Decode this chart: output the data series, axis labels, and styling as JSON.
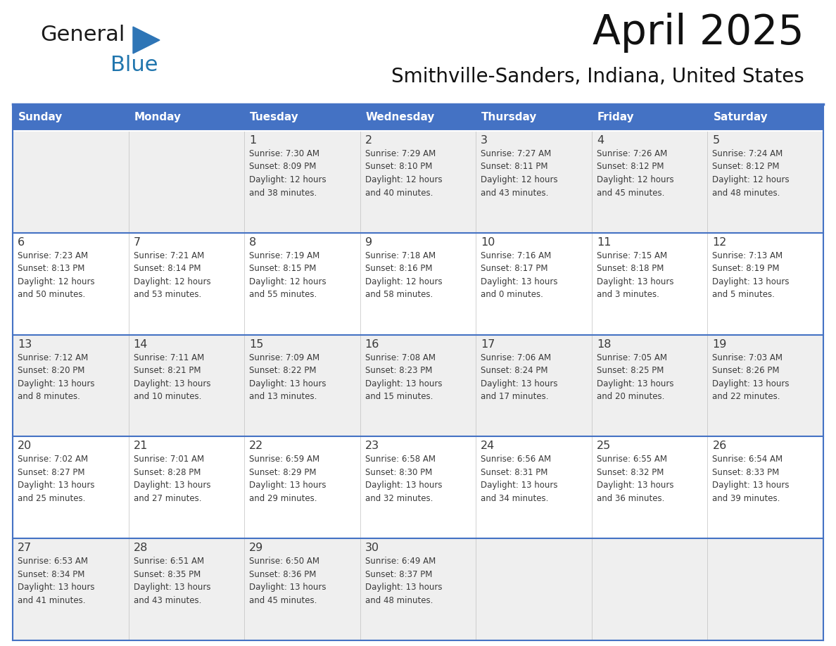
{
  "title": "April 2025",
  "subtitle": "Smithville-Sanders, Indiana, United States",
  "header_bg": "#4472C4",
  "header_text_color": "#FFFFFF",
  "cell_bg_odd": "#EFEFEF",
  "cell_bg_even": "#FFFFFF",
  "border_color": "#4472C4",
  "text_color": "#3a3a3a",
  "logo_black": "#1a1a1a",
  "logo_blue": "#2176AE",
  "logo_triangle": "#2E75B6",
  "days_of_week": [
    "Sunday",
    "Monday",
    "Tuesday",
    "Wednesday",
    "Thursday",
    "Friday",
    "Saturday"
  ],
  "weeks": [
    [
      {
        "day": "",
        "info": ""
      },
      {
        "day": "",
        "info": ""
      },
      {
        "day": "1",
        "info": "Sunrise: 7:30 AM\nSunset: 8:09 PM\nDaylight: 12 hours\nand 38 minutes."
      },
      {
        "day": "2",
        "info": "Sunrise: 7:29 AM\nSunset: 8:10 PM\nDaylight: 12 hours\nand 40 minutes."
      },
      {
        "day": "3",
        "info": "Sunrise: 7:27 AM\nSunset: 8:11 PM\nDaylight: 12 hours\nand 43 minutes."
      },
      {
        "day": "4",
        "info": "Sunrise: 7:26 AM\nSunset: 8:12 PM\nDaylight: 12 hours\nand 45 minutes."
      },
      {
        "day": "5",
        "info": "Sunrise: 7:24 AM\nSunset: 8:12 PM\nDaylight: 12 hours\nand 48 minutes."
      }
    ],
    [
      {
        "day": "6",
        "info": "Sunrise: 7:23 AM\nSunset: 8:13 PM\nDaylight: 12 hours\nand 50 minutes."
      },
      {
        "day": "7",
        "info": "Sunrise: 7:21 AM\nSunset: 8:14 PM\nDaylight: 12 hours\nand 53 minutes."
      },
      {
        "day": "8",
        "info": "Sunrise: 7:19 AM\nSunset: 8:15 PM\nDaylight: 12 hours\nand 55 minutes."
      },
      {
        "day": "9",
        "info": "Sunrise: 7:18 AM\nSunset: 8:16 PM\nDaylight: 12 hours\nand 58 minutes."
      },
      {
        "day": "10",
        "info": "Sunrise: 7:16 AM\nSunset: 8:17 PM\nDaylight: 13 hours\nand 0 minutes."
      },
      {
        "day": "11",
        "info": "Sunrise: 7:15 AM\nSunset: 8:18 PM\nDaylight: 13 hours\nand 3 minutes."
      },
      {
        "day": "12",
        "info": "Sunrise: 7:13 AM\nSunset: 8:19 PM\nDaylight: 13 hours\nand 5 minutes."
      }
    ],
    [
      {
        "day": "13",
        "info": "Sunrise: 7:12 AM\nSunset: 8:20 PM\nDaylight: 13 hours\nand 8 minutes."
      },
      {
        "day": "14",
        "info": "Sunrise: 7:11 AM\nSunset: 8:21 PM\nDaylight: 13 hours\nand 10 minutes."
      },
      {
        "day": "15",
        "info": "Sunrise: 7:09 AM\nSunset: 8:22 PM\nDaylight: 13 hours\nand 13 minutes."
      },
      {
        "day": "16",
        "info": "Sunrise: 7:08 AM\nSunset: 8:23 PM\nDaylight: 13 hours\nand 15 minutes."
      },
      {
        "day": "17",
        "info": "Sunrise: 7:06 AM\nSunset: 8:24 PM\nDaylight: 13 hours\nand 17 minutes."
      },
      {
        "day": "18",
        "info": "Sunrise: 7:05 AM\nSunset: 8:25 PM\nDaylight: 13 hours\nand 20 minutes."
      },
      {
        "day": "19",
        "info": "Sunrise: 7:03 AM\nSunset: 8:26 PM\nDaylight: 13 hours\nand 22 minutes."
      }
    ],
    [
      {
        "day": "20",
        "info": "Sunrise: 7:02 AM\nSunset: 8:27 PM\nDaylight: 13 hours\nand 25 minutes."
      },
      {
        "day": "21",
        "info": "Sunrise: 7:01 AM\nSunset: 8:28 PM\nDaylight: 13 hours\nand 27 minutes."
      },
      {
        "day": "22",
        "info": "Sunrise: 6:59 AM\nSunset: 8:29 PM\nDaylight: 13 hours\nand 29 minutes."
      },
      {
        "day": "23",
        "info": "Sunrise: 6:58 AM\nSunset: 8:30 PM\nDaylight: 13 hours\nand 32 minutes."
      },
      {
        "day": "24",
        "info": "Sunrise: 6:56 AM\nSunset: 8:31 PM\nDaylight: 13 hours\nand 34 minutes."
      },
      {
        "day": "25",
        "info": "Sunrise: 6:55 AM\nSunset: 8:32 PM\nDaylight: 13 hours\nand 36 minutes."
      },
      {
        "day": "26",
        "info": "Sunrise: 6:54 AM\nSunset: 8:33 PM\nDaylight: 13 hours\nand 39 minutes."
      }
    ],
    [
      {
        "day": "27",
        "info": "Sunrise: 6:53 AM\nSunset: 8:34 PM\nDaylight: 13 hours\nand 41 minutes."
      },
      {
        "day": "28",
        "info": "Sunrise: 6:51 AM\nSunset: 8:35 PM\nDaylight: 13 hours\nand 43 minutes."
      },
      {
        "day": "29",
        "info": "Sunrise: 6:50 AM\nSunset: 8:36 PM\nDaylight: 13 hours\nand 45 minutes."
      },
      {
        "day": "30",
        "info": "Sunrise: 6:49 AM\nSunset: 8:37 PM\nDaylight: 13 hours\nand 48 minutes."
      },
      {
        "day": "",
        "info": ""
      },
      {
        "day": "",
        "info": ""
      },
      {
        "day": "",
        "info": ""
      }
    ]
  ]
}
